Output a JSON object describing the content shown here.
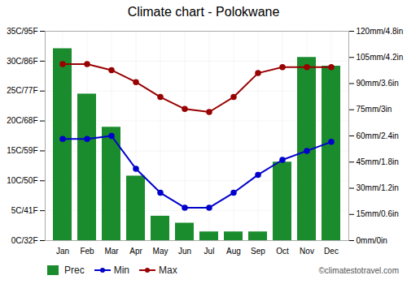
{
  "chart_data": {
    "type": "bar",
    "title": "Climate chart - Polokwane",
    "categories": [
      "Jan",
      "Feb",
      "Mar",
      "Apr",
      "May",
      "Jun",
      "Jul",
      "Aug",
      "Sep",
      "Oct",
      "Nov",
      "Dec"
    ],
    "series": [
      {
        "name": "Prec",
        "type": "bar",
        "axis": "y2",
        "color": "#1a8c2e",
        "values": [
          110,
          84,
          65,
          37,
          14,
          10,
          5,
          5,
          5,
          45,
          105,
          100
        ]
      },
      {
        "name": "Min",
        "type": "line",
        "color": "#0000cc",
        "marker": "circle",
        "values": [
          17,
          17,
          17.5,
          12,
          8,
          5.5,
          5.5,
          8,
          11,
          13.5,
          15,
          16.5
        ]
      },
      {
        "name": "Max",
        "type": "line",
        "color": "#990000",
        "marker": "circle",
        "values": [
          29.5,
          29.5,
          28.5,
          26.5,
          24,
          22,
          21.5,
          24,
          28,
          29,
          29,
          29
        ]
      }
    ],
    "ylim": [
      0,
      35
    ],
    "yticks": [
      {
        "value": 0,
        "label": "0C/32F"
      },
      {
        "value": 5,
        "label": "5C/41F"
      },
      {
        "value": 10,
        "label": "10C/50F"
      },
      {
        "value": 15,
        "label": "15C/59F"
      },
      {
        "value": 20,
        "label": "20C/68F"
      },
      {
        "value": 25,
        "label": "25C/77F"
      },
      {
        "value": 30,
        "label": "30C/86F"
      },
      {
        "value": 35,
        "label": "35C/95F"
      }
    ],
    "y2lim": [
      0,
      120
    ],
    "y2ticks": [
      {
        "value": 0,
        "label": "0mm/0in"
      },
      {
        "value": 15,
        "label": "15mm/0.6in"
      },
      {
        "value": 30,
        "label": "30mm/1.2in"
      },
      {
        "value": 45,
        "label": "45mm/1.8in"
      },
      {
        "value": 60,
        "label": "60mm/2.4in"
      },
      {
        "value": 75,
        "label": "75mm/3in"
      },
      {
        "value": 90,
        "label": "90mm/3.6in"
      },
      {
        "value": 105,
        "label": "105mm/4.2in"
      },
      {
        "value": 120,
        "label": "120mm/4.8in"
      }
    ],
    "grid": true,
    "legend": "bottom-left",
    "annotations": [
      {
        "text": "©climatestotravel.com"
      }
    ]
  }
}
